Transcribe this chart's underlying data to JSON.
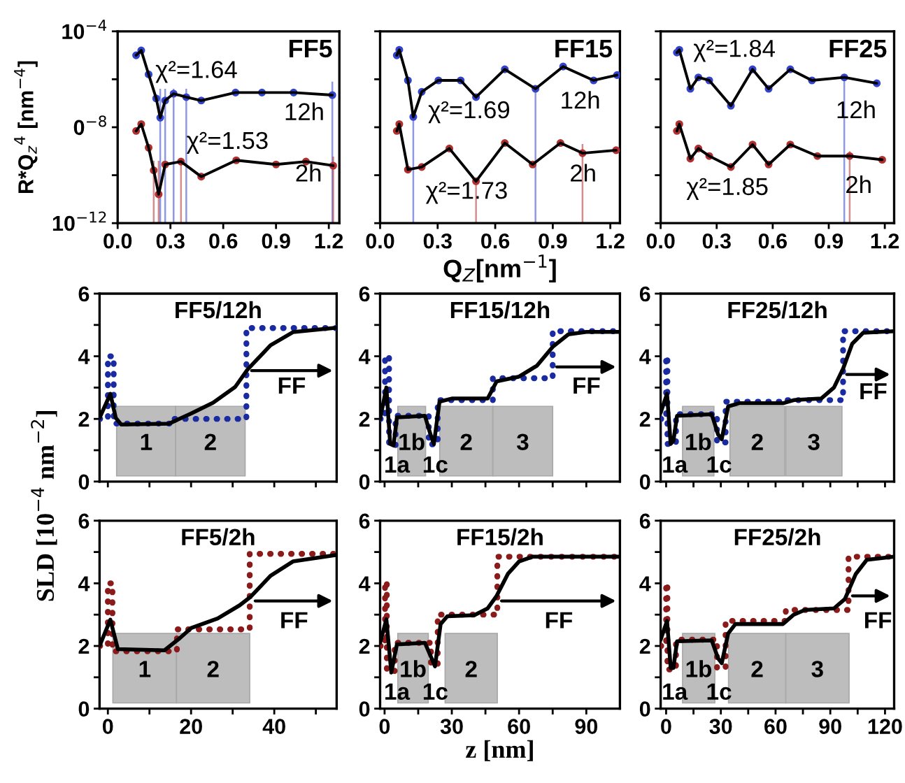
{
  "chart_data": [
    {
      "type": "line",
      "title": "FF5",
      "ylabel": "R*Q$_{z}$$^{4}$ [nm$^{−4}$]",
      "log": "y",
      "xlim": [
        0,
        1.26
      ],
      "ylim": [
        1e-12,
        0.0001
      ],
      "xticks": [
        {
          "value": 0,
          "label": "0.0"
        },
        0.3,
        0.6,
        0.9,
        1.2
      ],
      "yticks": [
        {
          "value": 0.0001,
          "label": "10$^{−4}$"
        },
        {
          "value": 1e-06,
          "label": null
        },
        {
          "value": 1e-08,
          "label": "0$^{−8}$"
        },
        {
          "value": 1e-10,
          "label": null
        },
        {
          "value": 1e-12,
          "label": "10$^{−12}$"
        }
      ],
      "series": [
        {
          "type": "scatter",
          "marker": "circle",
          "color": "#3344cc",
          "x": [
            0.105,
            0.134,
            0.176,
            0.219,
            0.242,
            0.27,
            0.318,
            0.39,
            0.475,
            0.67,
            0.82,
            1.0,
            1.22
          ],
          "values": [
            1e-05,
            1.6e-05,
            1.6e-06,
            1.6e-07,
            2.5e-08,
            1.3e-07,
            2.5e-07,
            1.8e-07,
            1.3e-07,
            2.8e-07,
            2.8e-07,
            2.8e-07,
            2.2e-07
          ],
          "errors": [
            null,
            null,
            null,
            null,
            [
              1e-12,
              4e-07
            ],
            [
              1e-12,
              4e-07
            ],
            [
              1e-12,
              4e-07
            ],
            [
              1e-12,
              4e-07
            ],
            null,
            null,
            null,
            null,
            [
              1e-12,
              8e-07
            ]
          ]
        },
        {
          "marker": "none",
          "color": "#000000",
          "x": [
            0.105,
            0.134,
            0.176,
            0.219,
            0.242,
            0.27,
            0.318,
            0.39,
            0.475,
            0.67,
            0.82,
            1.0,
            1.22
          ],
          "values": [
            1e-05,
            1.6e-05,
            1.6e-06,
            1.6e-07,
            2.5e-08,
            1.3e-07,
            2.5e-07,
            1.8e-07,
            1.3e-07,
            2.8e-07,
            2.8e-07,
            2.8e-07,
            2.2e-07
          ]
        },
        {
          "type": "scatter",
          "marker": "circle",
          "color": "#b03030",
          "x": [
            0.105,
            0.134,
            0.176,
            0.205,
            0.233,
            0.27,
            0.36,
            0.475,
            0.674,
            0.9,
            1.07,
            1.225
          ],
          "values": [
            7e-09,
            1.35e-08,
            1.4e-09,
            1.6e-10,
            1.6e-11,
            2.8e-10,
            3.7e-10,
            8.7e-11,
            4.2e-10,
            2.8e-10,
            3.7e-10,
            2.5e-10
          ],
          "errors": [
            null,
            null,
            null,
            [
              1e-12,
              4e-10
            ],
            [
              1e-12,
              4e-10
            ],
            null,
            [
              1e-12,
              4e-10
            ],
            null,
            null,
            null,
            null,
            [
              1e-12,
              6e-10
            ]
          ]
        },
        {
          "marker": "none",
          "color": "#000000",
          "x": [
            0.105,
            0.134,
            0.176,
            0.205,
            0.233,
            0.27,
            0.36,
            0.475,
            0.674,
            0.9,
            1.07,
            1.225
          ],
          "values": [
            7e-09,
            1.35e-08,
            1.4e-09,
            1.6e-10,
            1.6e-11,
            2.8e-10,
            3.7e-10,
            8.7e-11,
            4.2e-10,
            2.8e-10,
            3.7e-10,
            2.5e-10
          ]
        }
      ],
      "annotations": [
        "χ²=1.64",
        "12h",
        "χ²=1.53",
        "2h"
      ]
    },
    {
      "type": "line",
      "title": "FF15",
      "xlabel": "Q$_{Z}$[nm$^{−1}$]",
      "log": "y",
      "tick_labels": "x",
      "xlim": [
        0,
        1.25
      ],
      "ylim": [
        1e-12,
        0.0001
      ],
      "xticks": [
        {
          "value": 0,
          "label": "0.0"
        },
        0.3,
        0.6,
        0.9,
        1.2
      ],
      "yticks": [
        {
          "value": 0.0001,
          "label": null
        },
        {
          "value": 1e-06,
          "label": null
        },
        {
          "value": 1e-08,
          "label": null
        },
        {
          "value": 1e-10,
          "label": null
        },
        {
          "value": 1e-12,
          "label": null
        }
      ],
      "series": [
        {
          "type": "scatter",
          "marker": "circle",
          "color": "#3344cc",
          "x": [
            0.087,
            0.1,
            0.145,
            0.173,
            0.217,
            0.304,
            0.42,
            0.5,
            0.65,
            0.81,
            0.954,
            1.113,
            1.235
          ],
          "values": [
            1e-05,
            1.7e-05,
            9e-07,
            2.7e-08,
            3e-07,
            9e-07,
            9e-07,
            1.8e-07,
            2.6e-06,
            4e-07,
            3.4e-06,
            9e-07,
            1.5e-06
          ],
          "errors": [
            null,
            null,
            null,
            [
              1e-12,
              3e-08
            ],
            null,
            null,
            null,
            null,
            null,
            [
              1e-12,
              4e-07
            ],
            null,
            null,
            null
          ]
        },
        {
          "marker": "none",
          "color": "#000000",
          "x": [
            0.087,
            0.1,
            0.145,
            0.173,
            0.217,
            0.304,
            0.42,
            0.5,
            0.65,
            0.81,
            0.954,
            1.113,
            1.235
          ],
          "values": [
            1e-05,
            1.7e-05,
            9e-07,
            2.7e-08,
            3e-07,
            9e-07,
            9e-07,
            1.8e-07,
            2.6e-06,
            4e-07,
            3.4e-06,
            9e-07,
            1.5e-06
          ]
        },
        {
          "type": "scatter",
          "marker": "circle",
          "color": "#b03030",
          "x": [
            0.087,
            0.1,
            0.145,
            0.217,
            0.361,
            0.5,
            0.65,
            0.795,
            0.94,
            1.055,
            1.23
          ],
          "values": [
            7e-09,
            1.35e-08,
            1.7e-10,
            2.2e-10,
            1.3e-09,
            5.6e-11,
            2.2e-09,
            2.8e-10,
            2.2e-09,
            8.3e-10,
            1.1e-09
          ],
          "errors": [
            null,
            null,
            null,
            null,
            null,
            [
              1e-12,
              5.6e-11
            ],
            null,
            null,
            null,
            [
              1e-12,
              2e-09
            ],
            null
          ]
        },
        {
          "marker": "none",
          "color": "#000000",
          "x": [
            0.087,
            0.1,
            0.145,
            0.217,
            0.361,
            0.5,
            0.65,
            0.795,
            0.94,
            1.055,
            1.23
          ],
          "values": [
            7e-09,
            1.35e-08,
            1.7e-10,
            2.2e-10,
            1.3e-09,
            5.6e-11,
            2.2e-09,
            2.8e-10,
            2.2e-09,
            8.3e-10,
            1.1e-09
          ]
        }
      ],
      "annotations": [
        "χ²=1.69",
        "12h",
        "2h",
        "χ²=1.73"
      ]
    },
    {
      "type": "line",
      "title": "FF25",
      "log": "y",
      "tick_labels": "x",
      "xlim": [
        0,
        1.25
      ],
      "ylim": [
        1e-12,
        0.0001
      ],
      "xticks": [
        {
          "value": 0,
          "label": "0.0"
        },
        0.3,
        0.6,
        0.9,
        1.2
      ],
      "yticks": [
        {
          "value": 0.0001,
          "label": null
        },
        {
          "value": 1e-06,
          "label": null
        },
        {
          "value": 1e-08,
          "label": null
        },
        {
          "value": 1e-10,
          "label": null
        },
        {
          "value": 1e-12,
          "label": null
        }
      ],
      "series": [
        {
          "type": "scatter",
          "marker": "circle",
          "color": "#3344cc",
          "x": [
            0.087,
            0.1,
            0.159,
            0.202,
            0.26,
            0.376,
            0.492,
            0.578,
            0.694,
            0.81,
            0.983,
            1.157
          ],
          "values": [
            1.3e-05,
            1.7e-05,
            4e-07,
            1.2e-06,
            9e-07,
            7.9e-08,
            2.6e-06,
            4e-07,
            2.6e-06,
            9e-07,
            1.2e-06,
            6.8e-07
          ],
          "errors": [
            null,
            null,
            null,
            null,
            null,
            null,
            null,
            null,
            null,
            null,
            [
              1e-12,
              1.2e-06
            ],
            null
          ]
        },
        {
          "marker": "none",
          "color": "#000000",
          "x": [
            0.087,
            0.1,
            0.159,
            0.202,
            0.26,
            0.376,
            0.492,
            0.578,
            0.694,
            0.81,
            0.983,
            1.157
          ],
          "values": [
            1.3e-05,
            1.7e-05,
            4e-07,
            1.2e-06,
            9e-07,
            7.9e-08,
            2.6e-06,
            4e-07,
            2.6e-06,
            9e-07,
            1.2e-06,
            6.8e-07
          ]
        },
        {
          "type": "scatter",
          "marker": "circle",
          "color": "#b03030",
          "x": [
            0.087,
            0.1,
            0.159,
            0.202,
            0.26,
            0.376,
            0.492,
            0.578,
            0.694,
            0.839,
            1.012,
            1.186
          ],
          "values": [
            7e-09,
            1.35e-08,
            4.9e-10,
            1.3e-09,
            6.3e-10,
            2.2e-10,
            1.9e-09,
            2.8e-10,
            1.9e-09,
            6.3e-10,
            6.3e-10,
            4.4e-10
          ],
          "errors": [
            null,
            null,
            null,
            null,
            null,
            null,
            null,
            null,
            null,
            null,
            [
              1e-12,
              1e-09
            ],
            null
          ]
        },
        {
          "marker": "none",
          "color": "#000000",
          "x": [
            0.087,
            0.1,
            0.159,
            0.202,
            0.26,
            0.376,
            0.492,
            0.578,
            0.694,
            0.839,
            1.012,
            1.186
          ],
          "values": [
            7e-09,
            1.35e-08,
            4.9e-10,
            1.3e-09,
            6.3e-10,
            2.2e-10,
            1.9e-09,
            2.8e-10,
            1.9e-09,
            6.3e-10,
            6.3e-10,
            4.4e-10
          ]
        }
      ],
      "annotations": [
        "χ²=1.84",
        "12h",
        "χ²=1.85",
        "2h"
      ]
    },
    {
      "type": "line",
      "title": "FF5/12h",
      "tick_labels": "y",
      "xlim": [
        -2,
        55
      ],
      "ylim": [
        0,
        6
      ],
      "xticks": [
        {
          "value": 0,
          "label": null
        },
        {
          "value": 10,
          "label": null
        },
        {
          "value": 20,
          "label": null
        },
        {
          "value": 30,
          "label": null
        },
        {
          "value": 40,
          "label": null
        },
        {
          "value": 50,
          "label": null
        }
      ],
      "yticks": [
        0,
        {
          "value": 1,
          "label": null
        },
        2,
        {
          "value": 3,
          "label": null
        },
        4,
        {
          "value": 5,
          "label": null
        },
        6
      ],
      "series": [
        {
          "line_style": "dotted",
          "color": "#1a2aa0",
          "x": [
            -2,
            0,
            0,
            1.4,
            1.4,
            15.7,
            15.7,
            33.3,
            33.3,
            55
          ],
          "values": [
            2,
            2,
            4,
            4,
            1.85,
            1.85,
            2,
            2,
            4.9,
            4.9
          ]
        },
        {
          "color": "#000000",
          "x": [
            -2,
            0.6,
            1.9,
            3.2,
            14.7,
            20,
            25.3,
            30.6,
            33.6,
            39.1,
            44.5,
            55
          ],
          "values": [
            2.03,
            2.8,
            2.03,
            1.82,
            1.85,
            2.17,
            2.52,
            3.02,
            3.58,
            4.35,
            4.77,
            4.91
          ]
        }
      ],
      "bands": [
        {
          "axis": "x",
          "from": 2.1,
          "to": 16.3,
          "label": "1",
          "color": "#bdbdbd"
        },
        {
          "axis": "x",
          "from": 16.3,
          "to": 33,
          "label": "2",
          "color": "#bdbdbd"
        }
      ],
      "annotations": [
        "FF"
      ]
    },
    {
      "type": "line",
      "title": "FF15/12h",
      "tick_labels": "y",
      "xlim": [
        -2,
        105
      ],
      "ylim": [
        0,
        6
      ],
      "xticks": [
        {
          "value": 0,
          "label": null
        },
        {
          "value": 15,
          "label": null
        },
        {
          "value": 30,
          "label": null
        },
        {
          "value": 45,
          "label": null
        },
        {
          "value": 60,
          "label": null
        },
        {
          "value": 75,
          "label": null
        },
        {
          "value": 90,
          "label": null
        }
      ],
      "yticks": [
        0,
        {
          "value": 1,
          "label": null
        },
        2,
        {
          "value": 3,
          "label": null
        },
        4,
        {
          "value": 5,
          "label": null
        },
        6
      ],
      "series": [
        {
          "line_style": "dotted",
          "color": "#1a2aa0",
          "x": [
            -2,
            0.2,
            0.2,
            2,
            2,
            4.9,
            4.9,
            19.7,
            19.7,
            23.7,
            23.7,
            48.3,
            48.3,
            75,
            75,
            105
          ],
          "values": [
            2,
            2,
            4,
            4,
            1.15,
            1.15,
            2.1,
            2.1,
            1.19,
            1.19,
            2.6,
            2.6,
            3.3,
            3.3,
            4.8,
            4.8
          ]
        },
        {
          "color": "#000000",
          "x": [
            -2,
            0.8,
            2.5,
            4,
            5.5,
            18,
            20.5,
            22,
            24.5,
            30,
            46,
            50,
            60,
            68,
            75,
            82,
            90,
            105
          ],
          "values": [
            2,
            3,
            1.2,
            1.15,
            2.05,
            2.1,
            1.5,
            1.2,
            2.55,
            2.65,
            2.65,
            3.2,
            3.35,
            3.7,
            4.3,
            4.7,
            4.78,
            4.78
          ]
        }
      ],
      "bands": [
        {
          "axis": "x",
          "from": 5.9,
          "to": 18.3,
          "label": "1b",
          "color": "#bdbdbd"
        },
        {
          "axis": "x",
          "from": 24.6,
          "to": 48.3,
          "label": "2",
          "color": "#bdbdbd"
        },
        {
          "axis": "x",
          "from": 48.3,
          "to": 75,
          "label": "3",
          "color": "#bdbdbd"
        }
      ],
      "annotations": [
        "FF",
        "1a",
        "1c"
      ]
    },
    {
      "type": "line",
      "title": "FF25/12h",
      "tick_labels": "y",
      "xlim": [
        -3,
        125
      ],
      "ylim": [
        0,
        6
      ],
      "xticks": [
        {
          "value": 0,
          "label": null
        },
        {
          "value": 15,
          "label": null
        },
        {
          "value": 30,
          "label": null
        },
        {
          "value": 45,
          "label": null
        },
        {
          "value": 60,
          "label": null
        },
        {
          "value": 75,
          "label": null
        },
        {
          "value": 90,
          "label": null
        },
        {
          "value": 105,
          "label": null
        },
        {
          "value": 120,
          "label": null
        }
      ],
      "yticks": [
        0,
        {
          "value": 1,
          "label": null
        },
        2,
        {
          "value": 3,
          "label": null
        },
        4,
        {
          "value": 5,
          "label": null
        },
        6
      ],
      "series": [
        {
          "line_style": "dotted",
          "color": "#1a2aa0",
          "x": [
            -3,
            0,
            0,
            0.7,
            0.7,
            5.4,
            5.4,
            27.9,
            27.9,
            32.6,
            32.6,
            65.6,
            65.6,
            97,
            97,
            125
          ],
          "values": [
            2,
            2,
            4,
            4,
            1.2,
            1.2,
            2.15,
            2.15,
            1.25,
            1.25,
            2.55,
            2.55,
            2.6,
            2.6,
            4.8,
            4.8
          ]
        },
        {
          "color": "#000000",
          "x": [
            -3,
            0.5,
            2.5,
            4,
            6,
            25,
            28.5,
            30.5,
            34,
            40,
            64,
            70,
            85,
            92,
            97,
            102,
            108,
            125
          ],
          "values": [
            2.2,
            2.8,
            1.2,
            1.3,
            2.1,
            2.15,
            1.5,
            1.35,
            2.4,
            2.5,
            2.5,
            2.6,
            2.65,
            3,
            3.6,
            4.4,
            4.75,
            4.8
          ]
        }
      ],
      "bands": [
        {
          "axis": "x",
          "from": 9,
          "to": 26.2,
          "label": "1b",
          "color": "#bdbdbd"
        },
        {
          "axis": "x",
          "from": 35,
          "to": 65,
          "label": "2",
          "color": "#bdbdbd"
        },
        {
          "axis": "x",
          "from": 65.6,
          "to": 96.4,
          "label": "3",
          "color": "#bdbdbd"
        }
      ],
      "annotations": [
        "FF",
        "1a",
        "1c"
      ]
    },
    {
      "type": "line",
      "title": "FF5/2h",
      "ylabel": "SLD [10$^{−4}$ nm$^{−2}$]",
      "xlim": [
        -2,
        55
      ],
      "ylim": [
        0,
        6
      ],
      "xticks": [
        0,
        {
          "value": 10,
          "label": null
        },
        20,
        {
          "value": 30,
          "label": null
        },
        40,
        {
          "value": 50,
          "label": null
        }
      ],
      "yticks": [
        0,
        {
          "value": 1,
          "label": null
        },
        2,
        {
          "value": 3,
          "label": null
        },
        4,
        {
          "value": 5,
          "label": null
        },
        6
      ],
      "series": [
        {
          "line_style": "dotted",
          "color": "#8b1a1a",
          "x": [
            -2,
            0,
            0,
            1.1,
            1.1,
            16.6,
            16.6,
            34.1,
            34.1,
            55
          ],
          "values": [
            2,
            2,
            4,
            4,
            1.83,
            1.83,
            2.53,
            2.53,
            4.94,
            4.94
          ]
        },
        {
          "color": "#000000",
          "x": [
            -2,
            0.6,
            2.4,
            13.6,
            17.3,
            20,
            26.4,
            31.7,
            34.4,
            39.1,
            44.5,
            55
          ],
          "values": [
            2,
            2.84,
            1.9,
            1.86,
            2.25,
            2.57,
            2.88,
            3.3,
            3.58,
            4.24,
            4.7,
            4.91
          ]
        }
      ],
      "bands": [
        {
          "axis": "x",
          "from": 1.2,
          "to": 16.5,
          "label": "1",
          "color": "#bdbdbd"
        },
        {
          "axis": "x",
          "from": 16.5,
          "to": 34.1,
          "label": "2",
          "color": "#bdbdbd"
        }
      ],
      "annotations": [
        "FF"
      ]
    },
    {
      "type": "line",
      "title": "FF15/2h",
      "xlabel": "z [nm]",
      "xlim": [
        -2,
        105
      ],
      "ylim": [
        0,
        6
      ],
      "xticks": [
        0,
        {
          "value": 15,
          "label": null
        },
        30,
        {
          "value": 45,
          "label": null
        },
        60,
        {
          "value": 75,
          "label": null
        },
        90
      ],
      "yticks": [
        0,
        {
          "value": 1,
          "label": null
        },
        2,
        {
          "value": 3,
          "label": null
        },
        4,
        {
          "value": 5,
          "label": null
        },
        6
      ],
      "series": [
        {
          "line_style": "dotted",
          "color": "#8b1a1a",
          "x": [
            -2,
            0.2,
            0.2,
            1,
            1,
            4.5,
            4.5,
            20.7,
            20.7,
            23.7,
            23.7,
            50.3,
            50.3,
            105
          ],
          "values": [
            2,
            2,
            4.05,
            4.05,
            1.2,
            1.2,
            2.1,
            2.1,
            1.4,
            1.4,
            3,
            3,
            4.85,
            4.85
          ]
        },
        {
          "color": "#000000",
          "x": [
            -2,
            0.8,
            3,
            5.5,
            18,
            21,
            22.5,
            25,
            28,
            40,
            46,
            50,
            55,
            60,
            66,
            105
          ],
          "values": [
            2.1,
            2.85,
            1.15,
            2.05,
            2.1,
            1.6,
            1.35,
            2.7,
            2.95,
            2.98,
            3.2,
            3.6,
            4.3,
            4.7,
            4.85,
            4.85
          ]
        }
      ],
      "bands": [
        {
          "axis": "x",
          "from": 5.9,
          "to": 19.5,
          "label": "1b",
          "color": "#bdbdbd"
        },
        {
          "axis": "x",
          "from": 27,
          "to": 50.3,
          "label": "2",
          "color": "#bdbdbd"
        }
      ],
      "annotations": [
        "FF",
        "1a",
        "1c"
      ]
    },
    {
      "type": "line",
      "title": "FF25/2h",
      "xlim": [
        -3,
        125
      ],
      "ylim": [
        0,
        6
      ],
      "xticks": [
        0,
        {
          "value": 15,
          "label": null
        },
        30,
        {
          "value": 45,
          "label": null
        },
        60,
        {
          "value": 75,
          "label": null
        },
        90,
        {
          "value": 105,
          "label": null
        },
        120
      ],
      "yticks": [
        0,
        {
          "value": 1,
          "label": null
        },
        2,
        {
          "value": 3,
          "label": null
        },
        4,
        {
          "value": 5,
          "label": null
        },
        6
      ],
      "series": [
        {
          "line_style": "dotted",
          "color": "#8b1a1a",
          "x": [
            -3,
            0,
            0,
            0.7,
            0.7,
            5.4,
            5.4,
            27.9,
            27.9,
            32.6,
            32.6,
            65.6,
            65.6,
            100,
            100,
            125
          ],
          "values": [
            2,
            2,
            4,
            4,
            1.25,
            1.25,
            2.2,
            2.2,
            1.3,
            1.3,
            2.8,
            2.8,
            3.15,
            3.15,
            4.85,
            4.85
          ]
        },
        {
          "color": "#000000",
          "x": [
            -3,
            0.5,
            2.5,
            4,
            6,
            25,
            28.5,
            30.5,
            34,
            38,
            64,
            70,
            76,
            92,
            98,
            104,
            110,
            125
          ],
          "values": [
            2.2,
            2.8,
            1.3,
            1.3,
            2.15,
            2.18,
            1.6,
            1.45,
            2.4,
            2.7,
            2.7,
            3,
            3.15,
            3.2,
            3.5,
            4.3,
            4.75,
            4.85
          ]
        }
      ],
      "bands": [
        {
          "axis": "x",
          "from": 9,
          "to": 26.7,
          "label": "1b",
          "color": "#bdbdbd"
        },
        {
          "axis": "x",
          "from": 34.2,
          "to": 65.6,
          "label": "2",
          "color": "#bdbdbd"
        },
        {
          "axis": "x",
          "from": 65.6,
          "to": 100.3,
          "label": "3",
          "color": "#bdbdbd"
        }
      ],
      "annotations": [
        "FF",
        "1a",
        "1c"
      ]
    }
  ]
}
